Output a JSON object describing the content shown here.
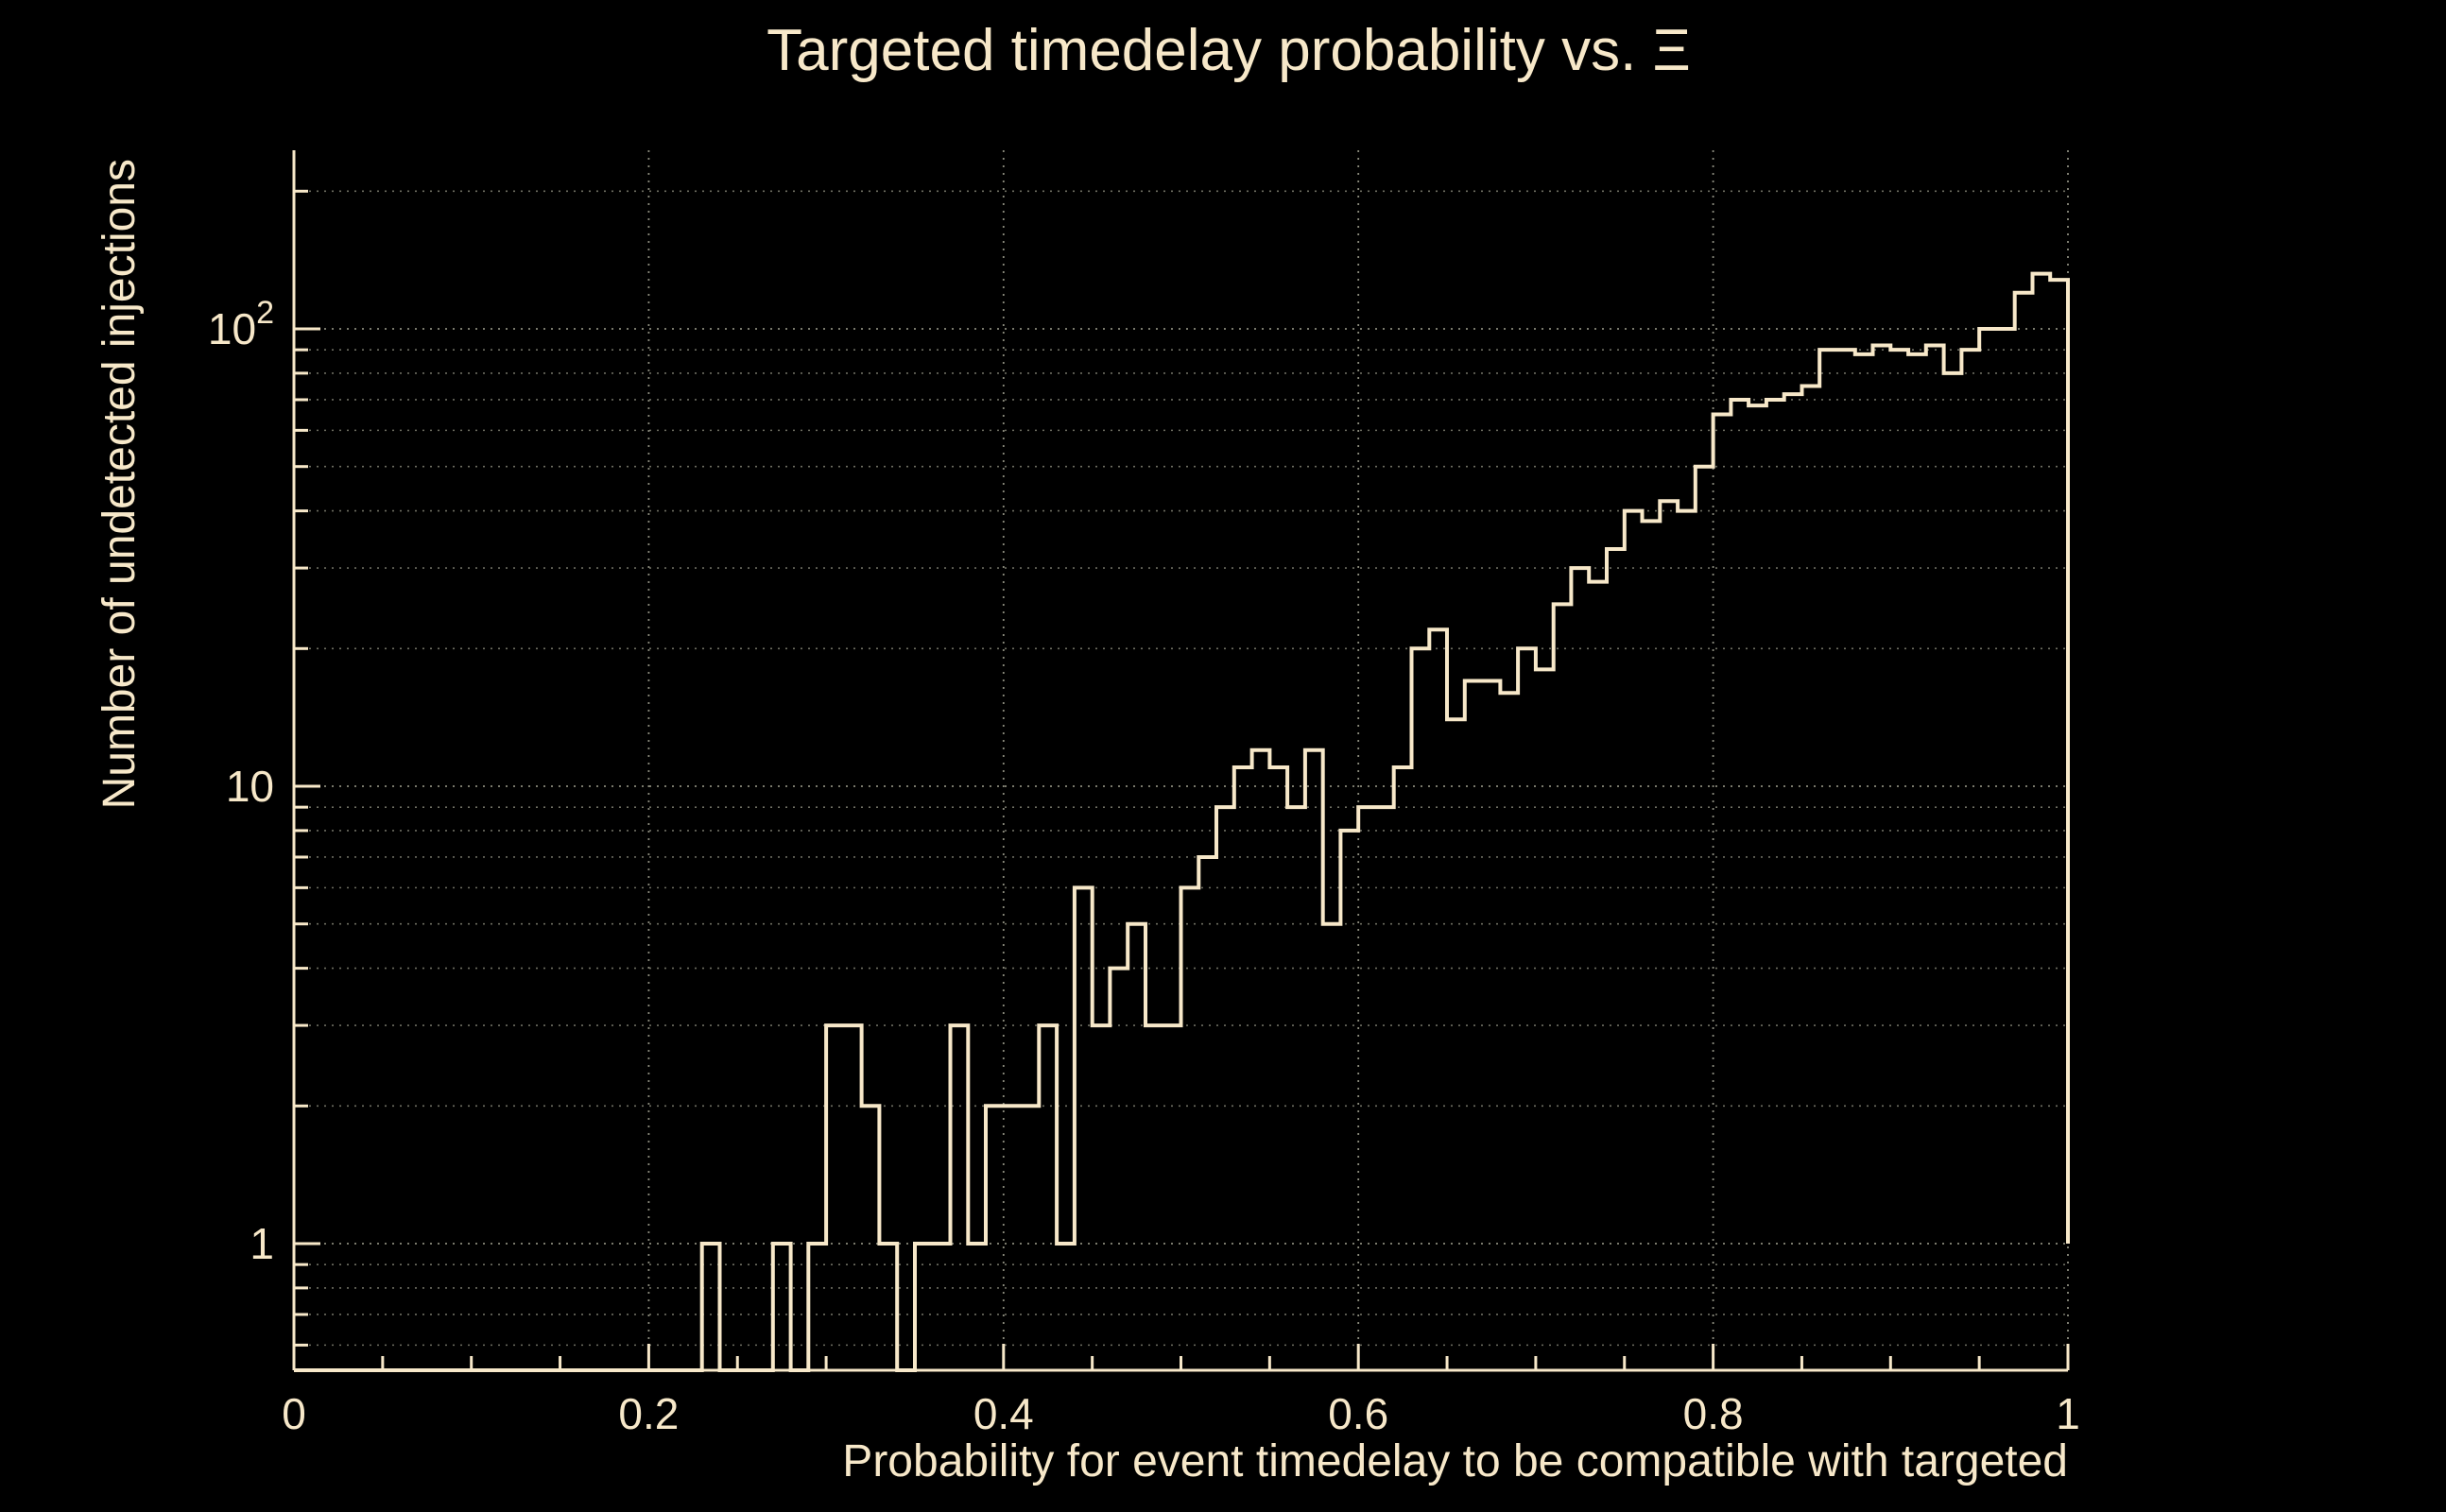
{
  "figure": {
    "background": "#000000",
    "accent": "#f7e8c9",
    "grid_minor_color": "#6e6e62",
    "grid_major_color": "#8a8a7c"
  },
  "chart_data": {
    "type": "bar",
    "subtype": "step-histogram",
    "title": "Targeted timedelay probability vs.  Ξ",
    "xlabel": "Probability for event timedelay to be compatible with targeted",
    "ylabel": "Number of undetected injections",
    "legend": "none",
    "grid": "on",
    "line_color": "#f7e8c9",
    "x_axis": {
      "min": 0,
      "max": 1,
      "tick_values": [
        0,
        0.2,
        0.4,
        0.6,
        0.8,
        1
      ],
      "tick_labels": [
        "0",
        "0.2",
        "0.4",
        "0.6",
        "0.8",
        "1"
      ],
      "minor_tick_step": 0.05
    },
    "y_axis": {
      "scale": "log",
      "min": 0.53,
      "max": 248,
      "tick_values": [
        1,
        10,
        100
      ],
      "tick_labels": [
        {
          "base": "1"
        },
        {
          "base": "10"
        },
        {
          "base": "10",
          "exp": "2"
        }
      ]
    },
    "bin_start": 0,
    "bin_width": 0.01,
    "values": [
      0,
      0,
      0,
      0,
      0,
      0,
      0,
      0,
      0,
      0,
      0,
      0,
      0,
      0,
      0,
      0,
      0,
      0,
      0,
      0,
      0,
      0,
      0,
      1,
      0,
      0,
      0,
      1,
      0,
      1,
      3,
      3,
      2,
      1,
      0,
      1,
      1,
      3,
      1,
      2,
      2,
      2,
      3,
      1,
      6,
      3,
      4,
      5,
      3,
      3,
      6,
      7,
      9,
      11,
      12,
      11,
      9,
      12,
      5,
      8,
      9,
      9,
      11,
      20,
      22,
      14,
      17,
      17,
      16,
      20,
      18,
      25,
      30,
      28,
      33,
      40,
      38,
      42,
      40,
      50,
      65,
      70,
      68,
      70,
      72,
      75,
      90,
      90,
      88,
      92,
      90,
      88,
      92,
      80,
      90,
      100,
      100,
      120,
      132,
      128
    ],
    "final_drop_to_value": 1
  }
}
